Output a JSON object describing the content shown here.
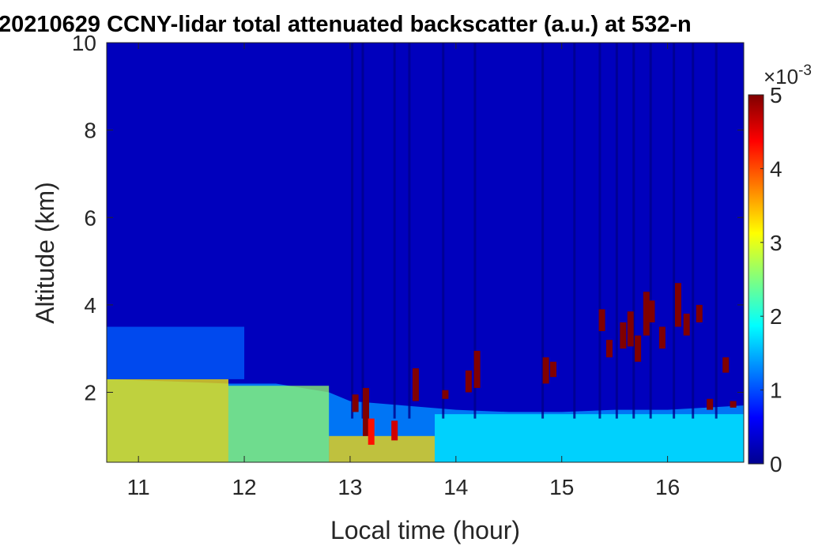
{
  "chart_data": {
    "type": "heatmap",
    "title": "20210629 CCNY-lidar total attenuated backscatter (a.u.) at 532-n",
    "xlabel": "Local time (hour)",
    "ylabel": "Altitude (km)",
    "xlim": [
      10.7,
      16.72
    ],
    "ylim": [
      0.4,
      10
    ],
    "xticks": [
      11,
      12,
      13,
      14,
      15,
      16
    ],
    "yticks": [
      2,
      4,
      6,
      8,
      10
    ],
    "colorbar": {
      "min": 0,
      "max": 5,
      "ticks": [
        0,
        1,
        2,
        3,
        4,
        5
      ],
      "multiplier_label": "×10",
      "exponent": "-3",
      "colormap": "jet"
    },
    "background_value": 0.3,
    "boundary_layer_top_km": [
      {
        "x": 10.7,
        "y": 2.3
      },
      {
        "x": 11.3,
        "y": 2.25
      },
      {
        "x": 11.85,
        "y": 2.2
      },
      {
        "x": 12.3,
        "y": 2.2
      },
      {
        "x": 12.8,
        "y": 2.0
      },
      {
        "x": 13.0,
        "y": 1.8
      },
      {
        "x": 13.5,
        "y": 1.7
      },
      {
        "x": 14.0,
        "y": 1.6
      },
      {
        "x": 14.5,
        "y": 1.55
      },
      {
        "x": 15.0,
        "y": 1.55
      },
      {
        "x": 15.5,
        "y": 1.6
      },
      {
        "x": 16.0,
        "y": 1.6
      },
      {
        "x": 16.72,
        "y": 1.7
      }
    ],
    "aerosol_layers": [
      {
        "x0": 10.7,
        "x1": 11.85,
        "y0": 0.4,
        "y1": 2.3,
        "value": 3.2
      },
      {
        "x0": 11.85,
        "x1": 12.8,
        "y0": 0.4,
        "y1": 2.15,
        "value": 2.6
      },
      {
        "x0": 12.8,
        "x1": 13.8,
        "y0": 0.4,
        "y1": 1.0,
        "value": 3.3
      },
      {
        "x0": 13.8,
        "x1": 16.72,
        "y0": 0.4,
        "y1": 1.5,
        "value": 1.8
      },
      {
        "x0": 10.7,
        "x1": 12.0,
        "y0": 2.3,
        "y1": 3.5,
        "value": 1.1
      }
    ],
    "clouds": [
      {
        "x": 13.05,
        "y0": 1.55,
        "y1": 1.95,
        "value": 5
      },
      {
        "x": 13.15,
        "y0": 1.0,
        "y1": 2.1,
        "value": 5
      },
      {
        "x": 13.2,
        "y0": 0.8,
        "y1": 1.4,
        "value": 4.3
      },
      {
        "x": 13.42,
        "y0": 0.9,
        "y1": 1.35,
        "value": 4.6
      },
      {
        "x": 13.62,
        "y0": 1.8,
        "y1": 2.55,
        "value": 5
      },
      {
        "x": 13.9,
        "y0": 1.85,
        "y1": 2.05,
        "value": 5
      },
      {
        "x": 14.12,
        "y0": 2.0,
        "y1": 2.5,
        "value": 5
      },
      {
        "x": 14.2,
        "y0": 2.1,
        "y1": 2.95,
        "value": 5
      },
      {
        "x": 14.85,
        "y0": 2.2,
        "y1": 2.8,
        "value": 5
      },
      {
        "x": 14.92,
        "y0": 2.35,
        "y1": 2.7,
        "value": 5
      },
      {
        "x": 15.38,
        "y0": 3.4,
        "y1": 3.9,
        "value": 5
      },
      {
        "x": 15.45,
        "y0": 2.8,
        "y1": 3.2,
        "value": 5
      },
      {
        "x": 15.58,
        "y0": 3.0,
        "y1": 3.6,
        "value": 5
      },
      {
        "x": 15.65,
        "y0": 3.05,
        "y1": 3.85,
        "value": 5
      },
      {
        "x": 15.72,
        "y0": 2.7,
        "y1": 3.3,
        "value": 5
      },
      {
        "x": 15.8,
        "y0": 3.3,
        "y1": 4.3,
        "value": 5
      },
      {
        "x": 15.85,
        "y0": 3.6,
        "y1": 4.1,
        "value": 5
      },
      {
        "x": 15.95,
        "y0": 3.0,
        "y1": 3.5,
        "value": 5
      },
      {
        "x": 16.1,
        "y0": 3.5,
        "y1": 4.5,
        "value": 5
      },
      {
        "x": 16.18,
        "y0": 3.3,
        "y1": 3.8,
        "value": 5
      },
      {
        "x": 16.3,
        "y0": 3.6,
        "y1": 4.0,
        "value": 5
      },
      {
        "x": 16.4,
        "y0": 1.6,
        "y1": 1.85,
        "value": 5
      },
      {
        "x": 16.55,
        "y0": 2.45,
        "y1": 2.8,
        "value": 5
      },
      {
        "x": 16.62,
        "y0": 1.65,
        "y1": 1.8,
        "value": 5
      }
    ],
    "signal_dropouts_hour": [
      13.02,
      13.12,
      13.42,
      13.56,
      13.88,
      14.18,
      14.82,
      15.12,
      15.36,
      15.52,
      15.68,
      15.84,
      16.06,
      16.24,
      16.46
    ]
  }
}
